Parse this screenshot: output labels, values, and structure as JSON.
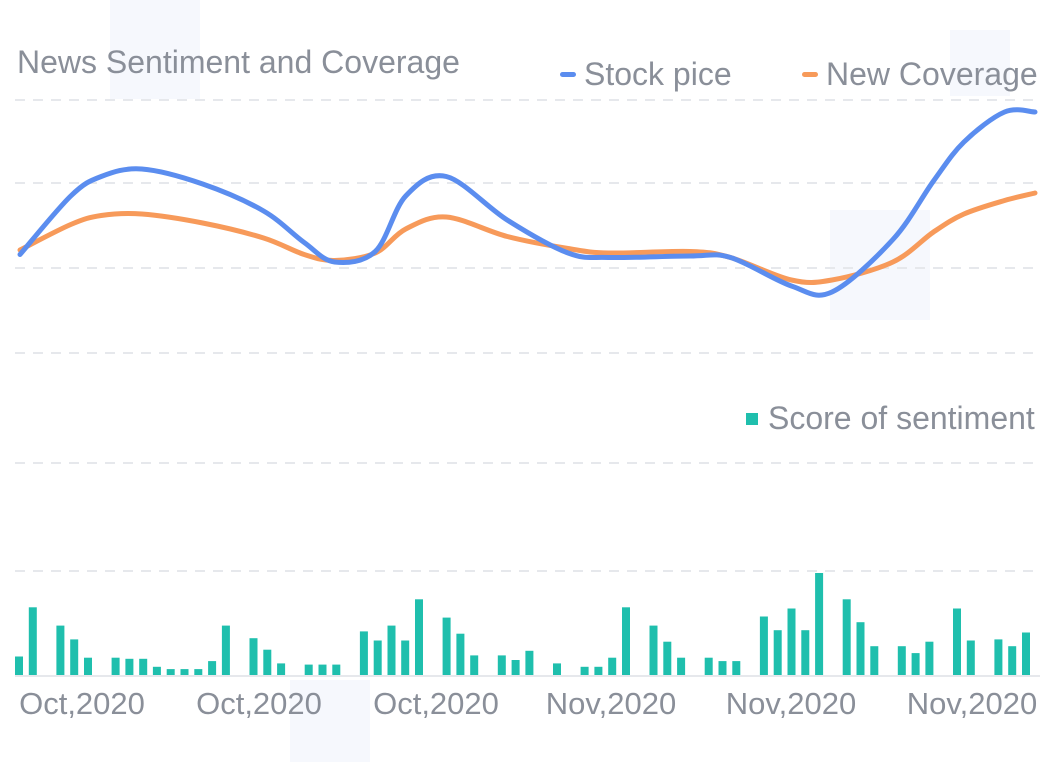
{
  "chart_data": {
    "type": "line+bar",
    "title": "News Sentiment and Coverage",
    "colors": {
      "stock_price": "#5b8def",
      "news_coverage": "#f79a5a",
      "sentiment": "#1fbfad",
      "grid": "#e6e8ec",
      "text": "#8a8f99"
    },
    "x_tick_labels": [
      "Oct,2020",
      "Oct,2020",
      "Oct,2020",
      "Nov,2020",
      "Nov,2020",
      "Nov,2020"
    ],
    "line_series": [
      {
        "name": "Stock pice",
        "key": "stock_price",
        "values": [
          0.05,
          0.44,
          0.57,
          0.62,
          0.52,
          0.34,
          0.13,
          0.0,
          0.07,
          0.44,
          0.57,
          0.28,
          0.06,
          0.03,
          0.04,
          0.03,
          -0.16,
          -0.2,
          0.15,
          0.54,
          0.8,
          1.0,
          1.0
        ],
        "x": [
          0.0,
          0.05,
          0.08,
          0.12,
          0.18,
          0.24,
          0.28,
          0.31,
          0.35,
          0.38,
          0.42,
          0.48,
          0.54,
          0.58,
          0.66,
          0.7,
          0.76,
          0.8,
          0.86,
          0.9,
          0.93,
          0.97,
          1.0
        ]
      },
      {
        "name": "New Coverage",
        "key": "news_coverage",
        "values": [
          0.08,
          0.25,
          0.31,
          0.32,
          0.26,
          0.16,
          0.05,
          0.01,
          0.06,
          0.22,
          0.3,
          0.17,
          0.09,
          0.06,
          0.07,
          0.03,
          -0.12,
          -0.12,
          0.0,
          0.2,
          0.32,
          0.41,
          0.46
        ],
        "x": [
          0.0,
          0.05,
          0.08,
          0.12,
          0.18,
          0.24,
          0.28,
          0.31,
          0.35,
          0.38,
          0.42,
          0.48,
          0.54,
          0.58,
          0.66,
          0.7,
          0.76,
          0.8,
          0.86,
          0.9,
          0.93,
          0.97,
          1.0
        ]
      }
    ],
    "bar_series": {
      "name": "Score of sentiment",
      "values": [
        1.7,
        6.0,
        0,
        4.4,
        3.2,
        1.6,
        0,
        1.6,
        1.5,
        1.5,
        0.8,
        0.6,
        0.6,
        0.6,
        1.3,
        4.4,
        0,
        3.3,
        2.3,
        1.1,
        0,
        1.0,
        1.0,
        1.0,
        0,
        3.9,
        3.1,
        4.4,
        3.1,
        6.7,
        0,
        5.1,
        3.7,
        1.8,
        0,
        1.8,
        1.4,
        2.2,
        0,
        1.1,
        0,
        0.8,
        0.8,
        1.6,
        6.0,
        0,
        4.4,
        3.0,
        1.6,
        0,
        1.6,
        1.3,
        1.3,
        0,
        5.2,
        4.0,
        5.9,
        4.0,
        9.0,
        0,
        6.7,
        4.7,
        2.6,
        0,
        2.6,
        2.0,
        3.0,
        0,
        5.9,
        3.1,
        0,
        3.2,
        2.6,
        3.8
      ],
      "ylim": [
        0,
        9.0
      ]
    },
    "grid": true,
    "legend_position": "top-right"
  }
}
